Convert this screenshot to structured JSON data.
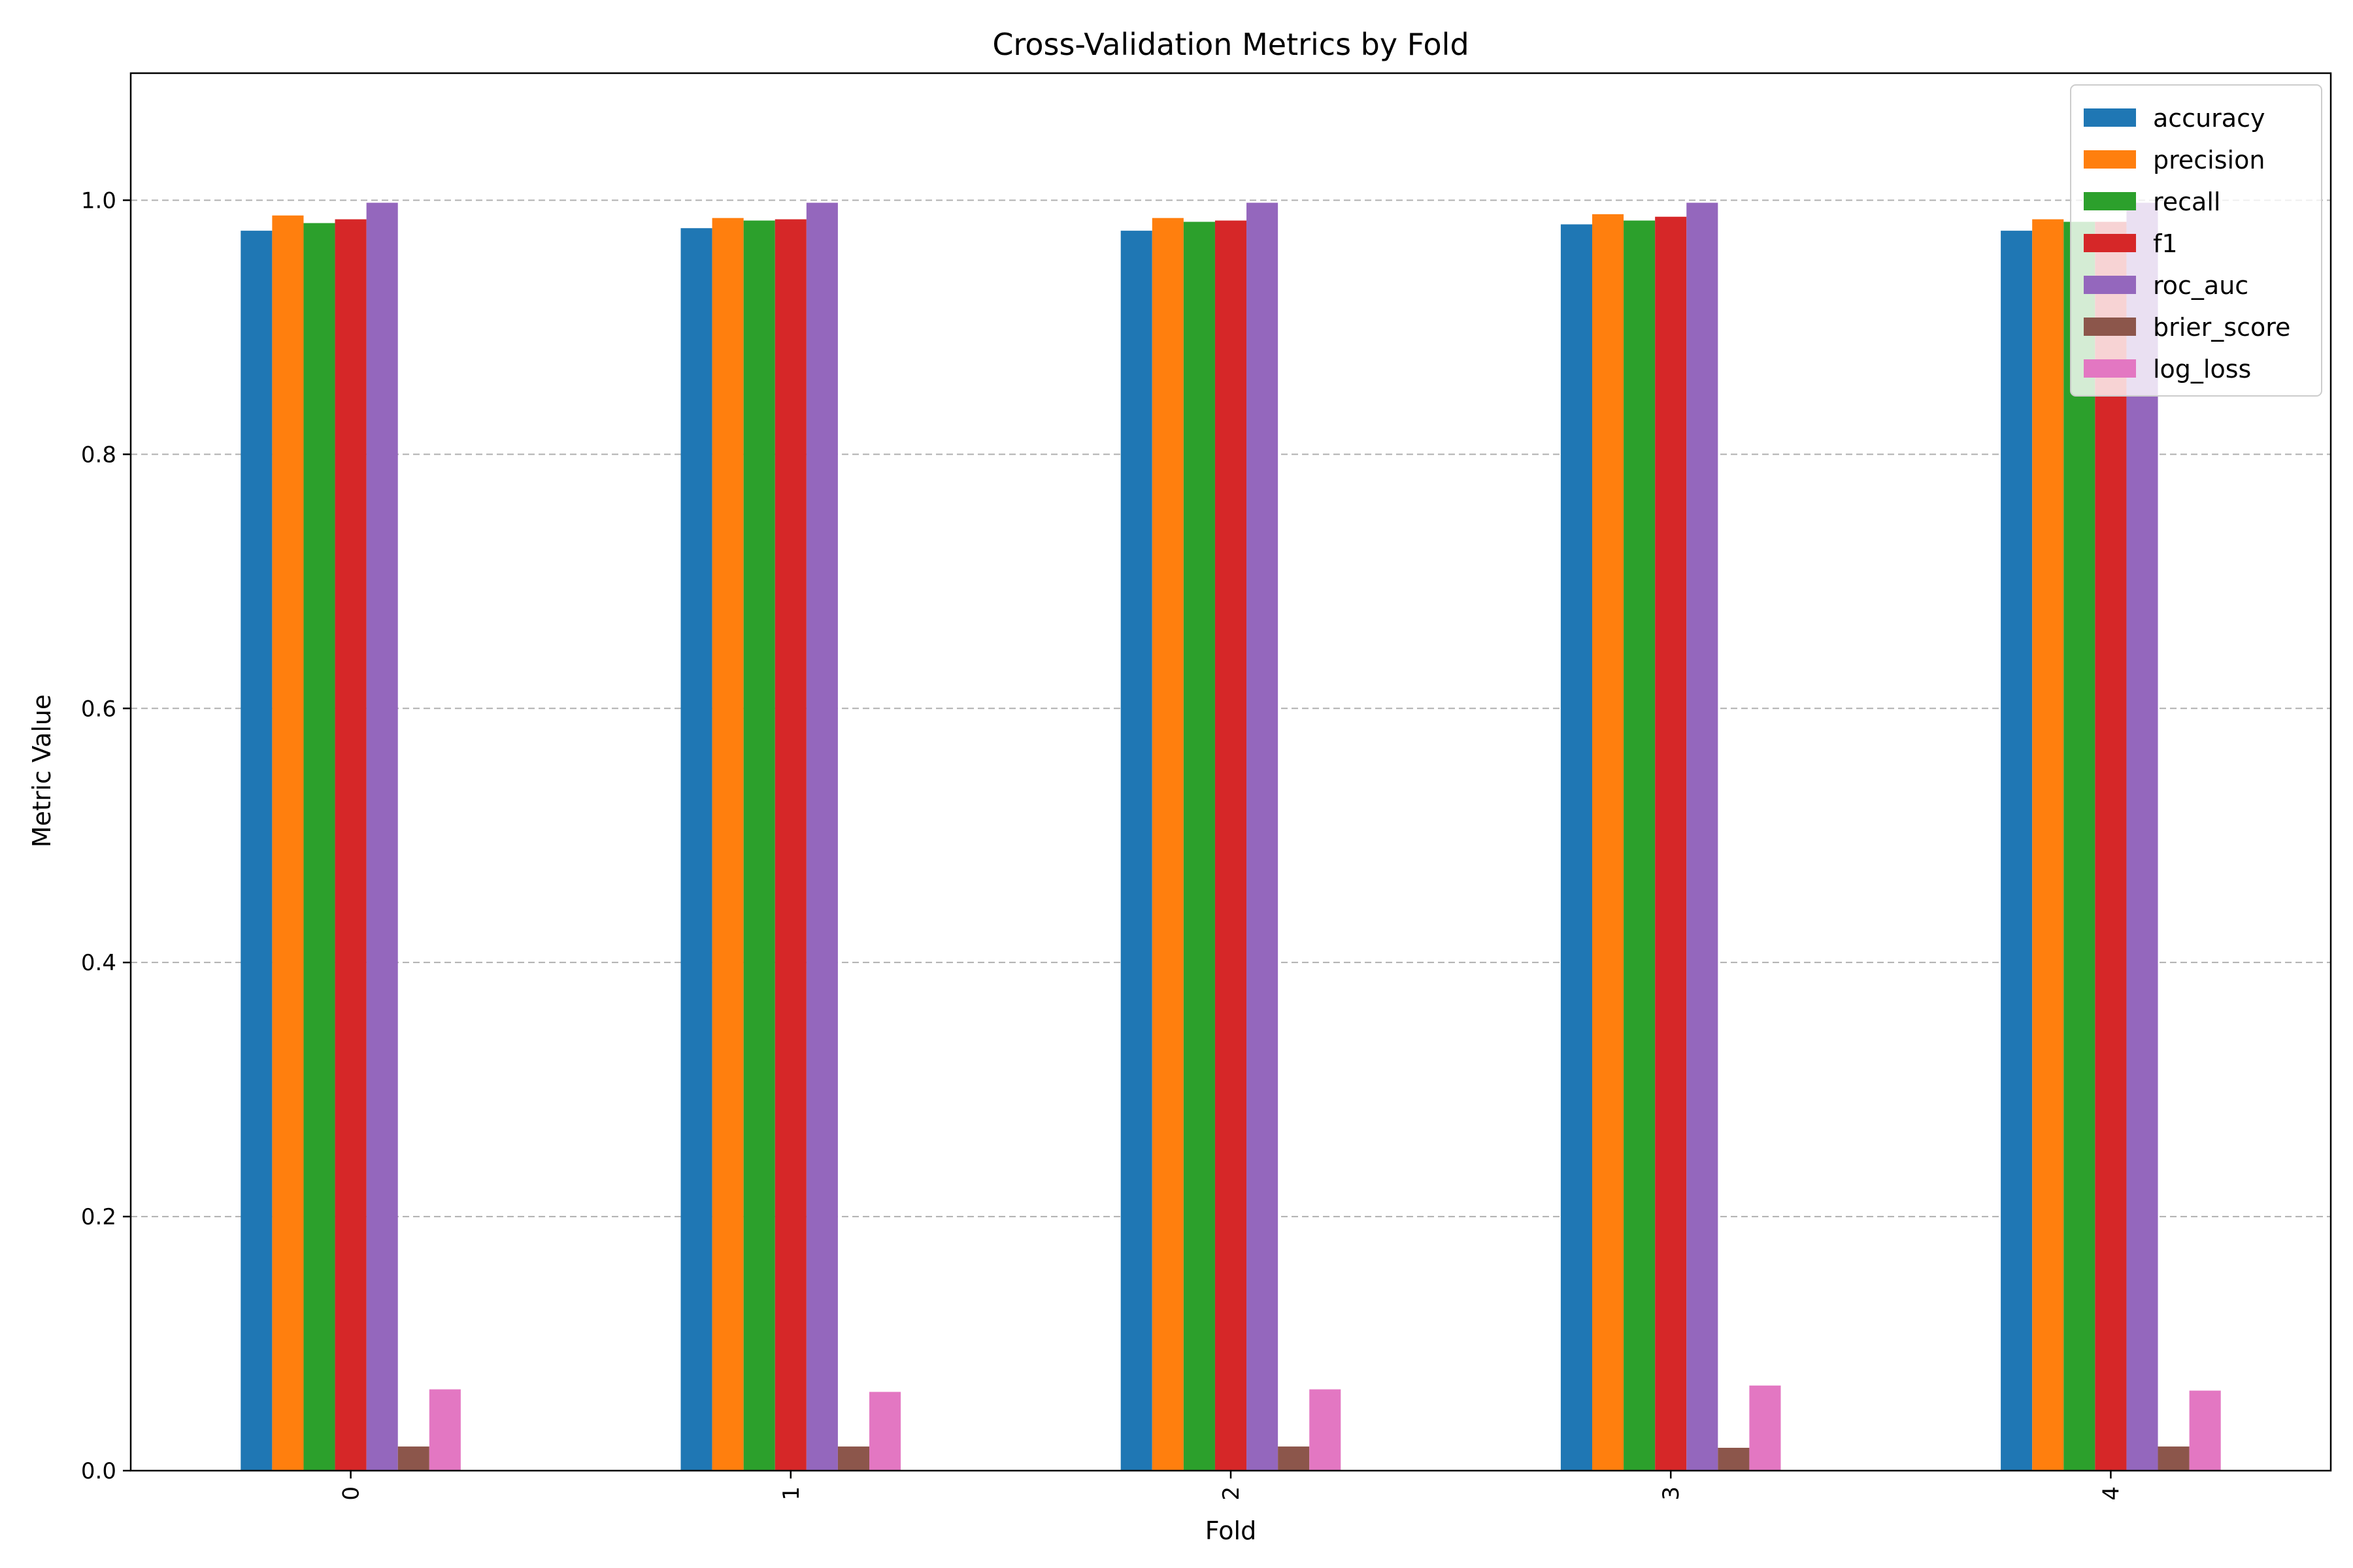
{
  "chart_data": {
    "type": "bar",
    "title": "Cross-Validation Metrics by Fold",
    "xlabel": "Fold",
    "ylabel": "Metric Value",
    "categories": [
      "0",
      "1",
      "2",
      "3",
      "4"
    ],
    "ylim": [
      0,
      1.1
    ],
    "yticks": [
      "0.0",
      "0.2",
      "0.4",
      "0.6",
      "0.8",
      "1.0"
    ],
    "grid": "y-dashed",
    "legend_position": "top-right",
    "series": [
      {
        "name": "accuracy",
        "color": "#1f77b4",
        "values": [
          0.976,
          0.978,
          0.976,
          0.981,
          0.976
        ]
      },
      {
        "name": "precision",
        "color": "#ff7f0e",
        "values": [
          0.988,
          0.986,
          0.986,
          0.989,
          0.985
        ]
      },
      {
        "name": "recall",
        "color": "#2ca02c",
        "values": [
          0.982,
          0.984,
          0.983,
          0.984,
          0.983
        ]
      },
      {
        "name": "f1",
        "color": "#d62728",
        "values": [
          0.985,
          0.985,
          0.984,
          0.987,
          0.983
        ]
      },
      {
        "name": "roc_auc",
        "color": "#9467bd",
        "values": [
          0.998,
          0.998,
          0.998,
          0.998,
          0.998
        ]
      },
      {
        "name": "brier_score",
        "color": "#8c564b",
        "values": [
          0.019,
          0.019,
          0.019,
          0.018,
          0.019
        ]
      },
      {
        "name": "log_loss",
        "color": "#e377c2",
        "values": [
          0.064,
          0.062,
          0.064,
          0.067,
          0.063
        ]
      }
    ]
  }
}
